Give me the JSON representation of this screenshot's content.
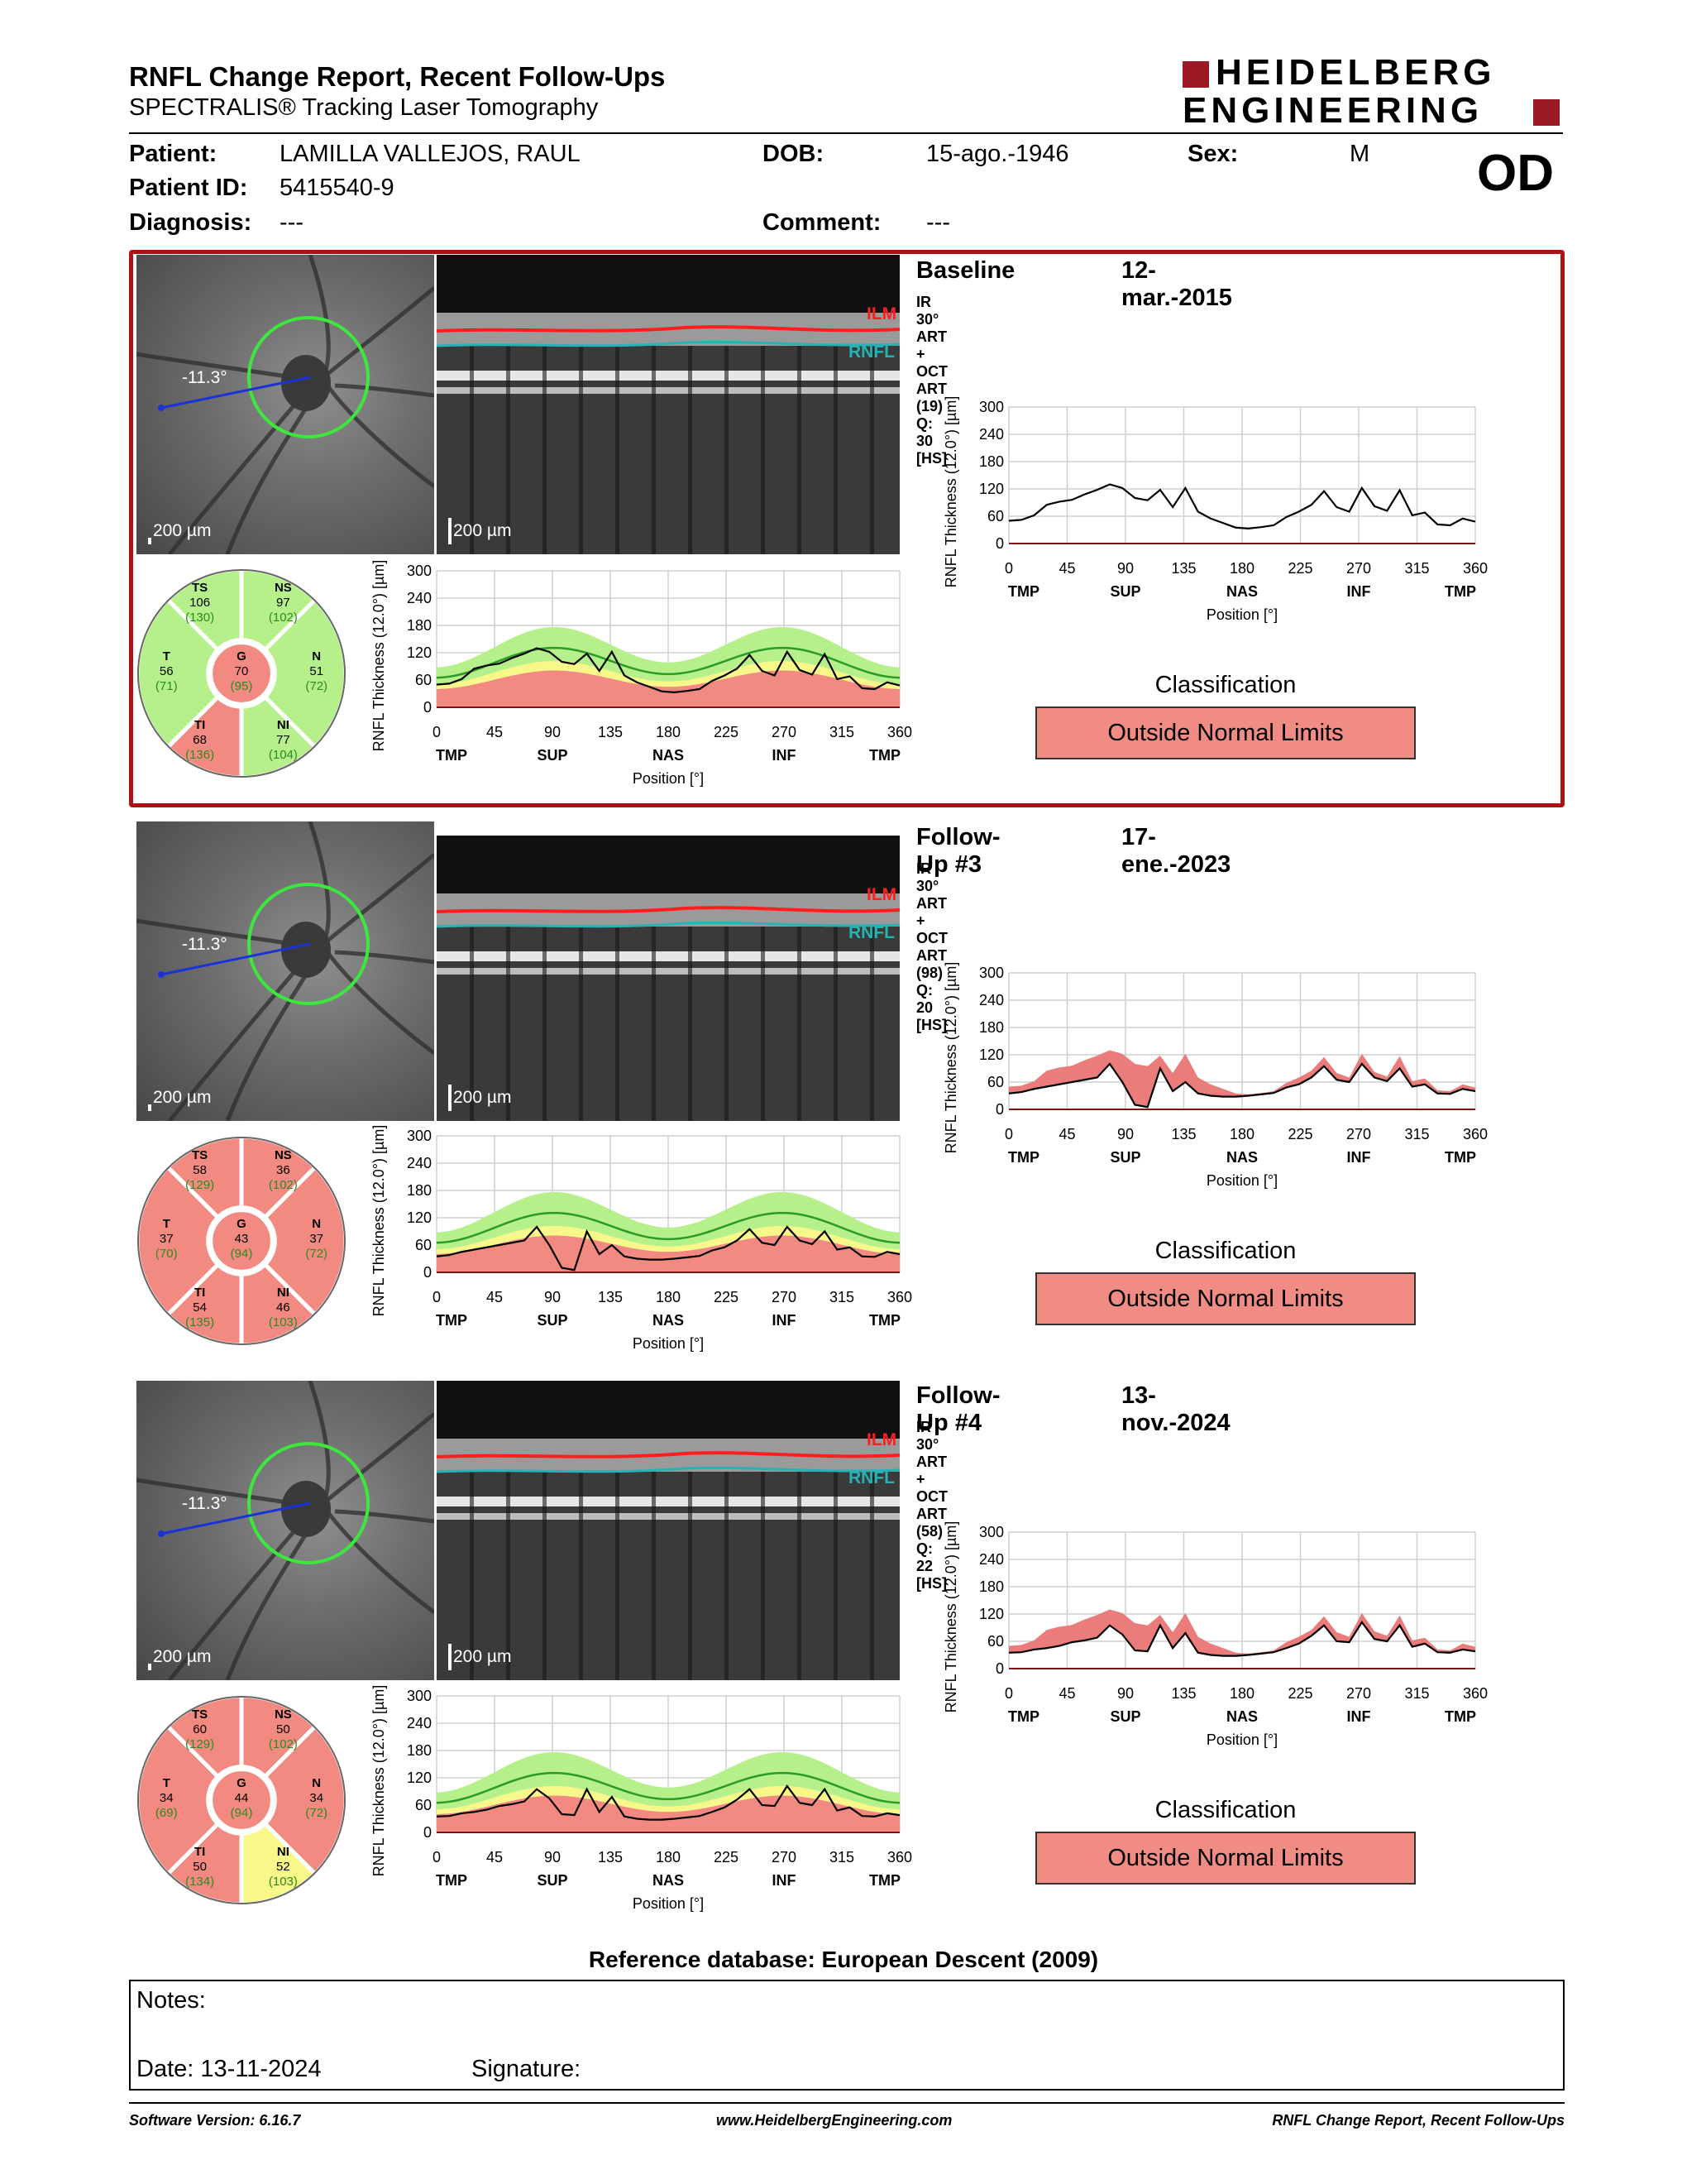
{
  "header": {
    "title": "RNFL Change Report, Recent Follow-Ups",
    "subtitle": "SPECTRALIS® Tracking Laser Tomography",
    "logo_line1": "HEIDELBERG",
    "logo_line2": "ENGINEERING",
    "eye": "OD"
  },
  "patient": {
    "patient_label": "Patient:",
    "patient_value": "LAMILLA VALLEJOS, RAUL",
    "id_label": "Patient ID:",
    "id_value": "5415540-9",
    "diagnosis_label": "Diagnosis:",
    "diagnosis_value": "---",
    "dob_label": "DOB:",
    "dob_value": "15-ago.-1946",
    "comment_label": "Comment:",
    "comment_value": "---",
    "sex_label": "Sex:",
    "sex_value": "M"
  },
  "common": {
    "scale_label": "200 µm",
    "angle_label": "-11.3°",
    "ilm": "ILM",
    "rnfl": "RNFL",
    "ylabel": "RNFL Thickness (12.0°) [µm]",
    "xlabel": "Position [°]",
    "xticks": [
      "0",
      "45",
      "90",
      "135",
      "180",
      "225",
      "270",
      "315",
      "360"
    ],
    "regions": [
      "TMP",
      "SUP",
      "NAS",
      "INF",
      "TMP"
    ],
    "yticks": [
      "0",
      "60",
      "120",
      "180",
      "240",
      "300"
    ],
    "classification_title": "Classification",
    "colors": {
      "red_band": "#f28a82",
      "yellow_band": "#f7f78a",
      "green_band": "#b5f08a",
      "frame": "#b01015",
      "logo": "#9a1b24"
    }
  },
  "exams": [
    {
      "title": "Baseline",
      "date": "12-mar.-2015",
      "info": "IR 30° ART + OCT ART (19) Q: 30 [HS]",
      "classification": "Outside Normal Limits",
      "sectors": {
        "TS": {
          "name": "TS",
          "value": "106",
          "ref": "(130)",
          "status": "normal"
        },
        "NS": {
          "name": "NS",
          "value": "97",
          "ref": "(102)",
          "status": "normal"
        },
        "T": {
          "name": "T",
          "value": "56",
          "ref": "(71)",
          "status": "normal"
        },
        "G": {
          "name": "G",
          "value": "70",
          "ref": "(95)",
          "status": "outside"
        },
        "N": {
          "name": "N",
          "value": "51",
          "ref": "(72)",
          "status": "normal"
        },
        "TI": {
          "name": "TI",
          "value": "68",
          "ref": "(136)",
          "status": "outside"
        },
        "NI": {
          "name": "NI",
          "value": "77",
          "ref": "(104)",
          "status": "normal"
        }
      },
      "curve": [
        50,
        52,
        62,
        85,
        92,
        96,
        108,
        118,
        130,
        122,
        100,
        95,
        118,
        80,
        122,
        70,
        55,
        45,
        35,
        33,
        36,
        40,
        58,
        70,
        85,
        115,
        80,
        70,
        122,
        82,
        72,
        117,
        62,
        68,
        42,
        40,
        55,
        48
      ],
      "prev_curve": null
    },
    {
      "title": "Follow-Up #3",
      "date": "17-ene.-2023",
      "info": "IR 30° ART + OCT ART (98) Q: 20 [HS]",
      "classification": "Outside Normal Limits",
      "sectors": {
        "TS": {
          "name": "TS",
          "value": "58",
          "ref": "(129)",
          "status": "outside"
        },
        "NS": {
          "name": "NS",
          "value": "36",
          "ref": "(102)",
          "status": "outside"
        },
        "T": {
          "name": "T",
          "value": "37",
          "ref": "(70)",
          "status": "outside"
        },
        "G": {
          "name": "G",
          "value": "43",
          "ref": "(94)",
          "status": "outside"
        },
        "N": {
          "name": "N",
          "value": "37",
          "ref": "(72)",
          "status": "outside"
        },
        "TI": {
          "name": "TI",
          "value": "54",
          "ref": "(135)",
          "status": "outside"
        },
        "NI": {
          "name": "NI",
          "value": "46",
          "ref": "(103)",
          "status": "outside"
        }
      },
      "curve": [
        35,
        38,
        45,
        50,
        55,
        60,
        65,
        70,
        100,
        60,
        10,
        5,
        90,
        40,
        60,
        35,
        30,
        28,
        28,
        30,
        33,
        36,
        48,
        55,
        70,
        95,
        65,
        60,
        100,
        70,
        62,
        90,
        50,
        55,
        35,
        34,
        45,
        40
      ],
      "prev_curve": [
        50,
        52,
        62,
        85,
        92,
        96,
        108,
        118,
        130,
        122,
        100,
        95,
        118,
        80,
        122,
        70,
        55,
        45,
        35,
        33,
        36,
        40,
        58,
        70,
        85,
        115,
        80,
        70,
        122,
        82,
        72,
        117,
        62,
        68,
        42,
        40,
        55,
        48
      ]
    },
    {
      "title": "Follow-Up #4",
      "date": "13-nov.-2024",
      "info": "IR 30° ART + OCT ART (58) Q: 22 [HS]",
      "classification": "Outside Normal Limits",
      "sectors": {
        "TS": {
          "name": "TS",
          "value": "60",
          "ref": "(129)",
          "status": "outside"
        },
        "NS": {
          "name": "NS",
          "value": "50",
          "ref": "(102)",
          "status": "outside"
        },
        "T": {
          "name": "T",
          "value": "34",
          "ref": "(69)",
          "status": "outside"
        },
        "G": {
          "name": "G",
          "value": "44",
          "ref": "(94)",
          "status": "outside"
        },
        "N": {
          "name": "N",
          "value": "34",
          "ref": "(72)",
          "status": "outside"
        },
        "TI": {
          "name": "TI",
          "value": "50",
          "ref": "(134)",
          "status": "outside"
        },
        "NI": {
          "name": "NI",
          "value": "52",
          "ref": "(103)",
          "status": "borderline"
        }
      },
      "curve": [
        35,
        36,
        42,
        45,
        50,
        58,
        62,
        68,
        95,
        75,
        40,
        38,
        95,
        45,
        78,
        35,
        30,
        28,
        28,
        30,
        33,
        36,
        45,
        55,
        72,
        95,
        60,
        58,
        102,
        65,
        60,
        95,
        48,
        55,
        36,
        35,
        42,
        38
      ],
      "prev_curve": [
        50,
        52,
        62,
        85,
        92,
        96,
        108,
        118,
        130,
        122,
        100,
        95,
        118,
        80,
        122,
        70,
        55,
        45,
        35,
        33,
        36,
        40,
        58,
        70,
        85,
        115,
        80,
        70,
        122,
        82,
        72,
        117,
        62,
        68,
        42,
        40,
        55,
        48
      ]
    }
  ],
  "reference_db": "Reference database: European Descent (2009)",
  "notes": {
    "notes_label": "Notes:",
    "date_label": "Date: 13-11-2024",
    "signature_label": "Signature:"
  },
  "footer": {
    "software": "Software Version: 6.16.7",
    "website": "www.HeidelbergEngineering.com",
    "report": "RNFL Change Report, Recent Follow-Ups"
  }
}
